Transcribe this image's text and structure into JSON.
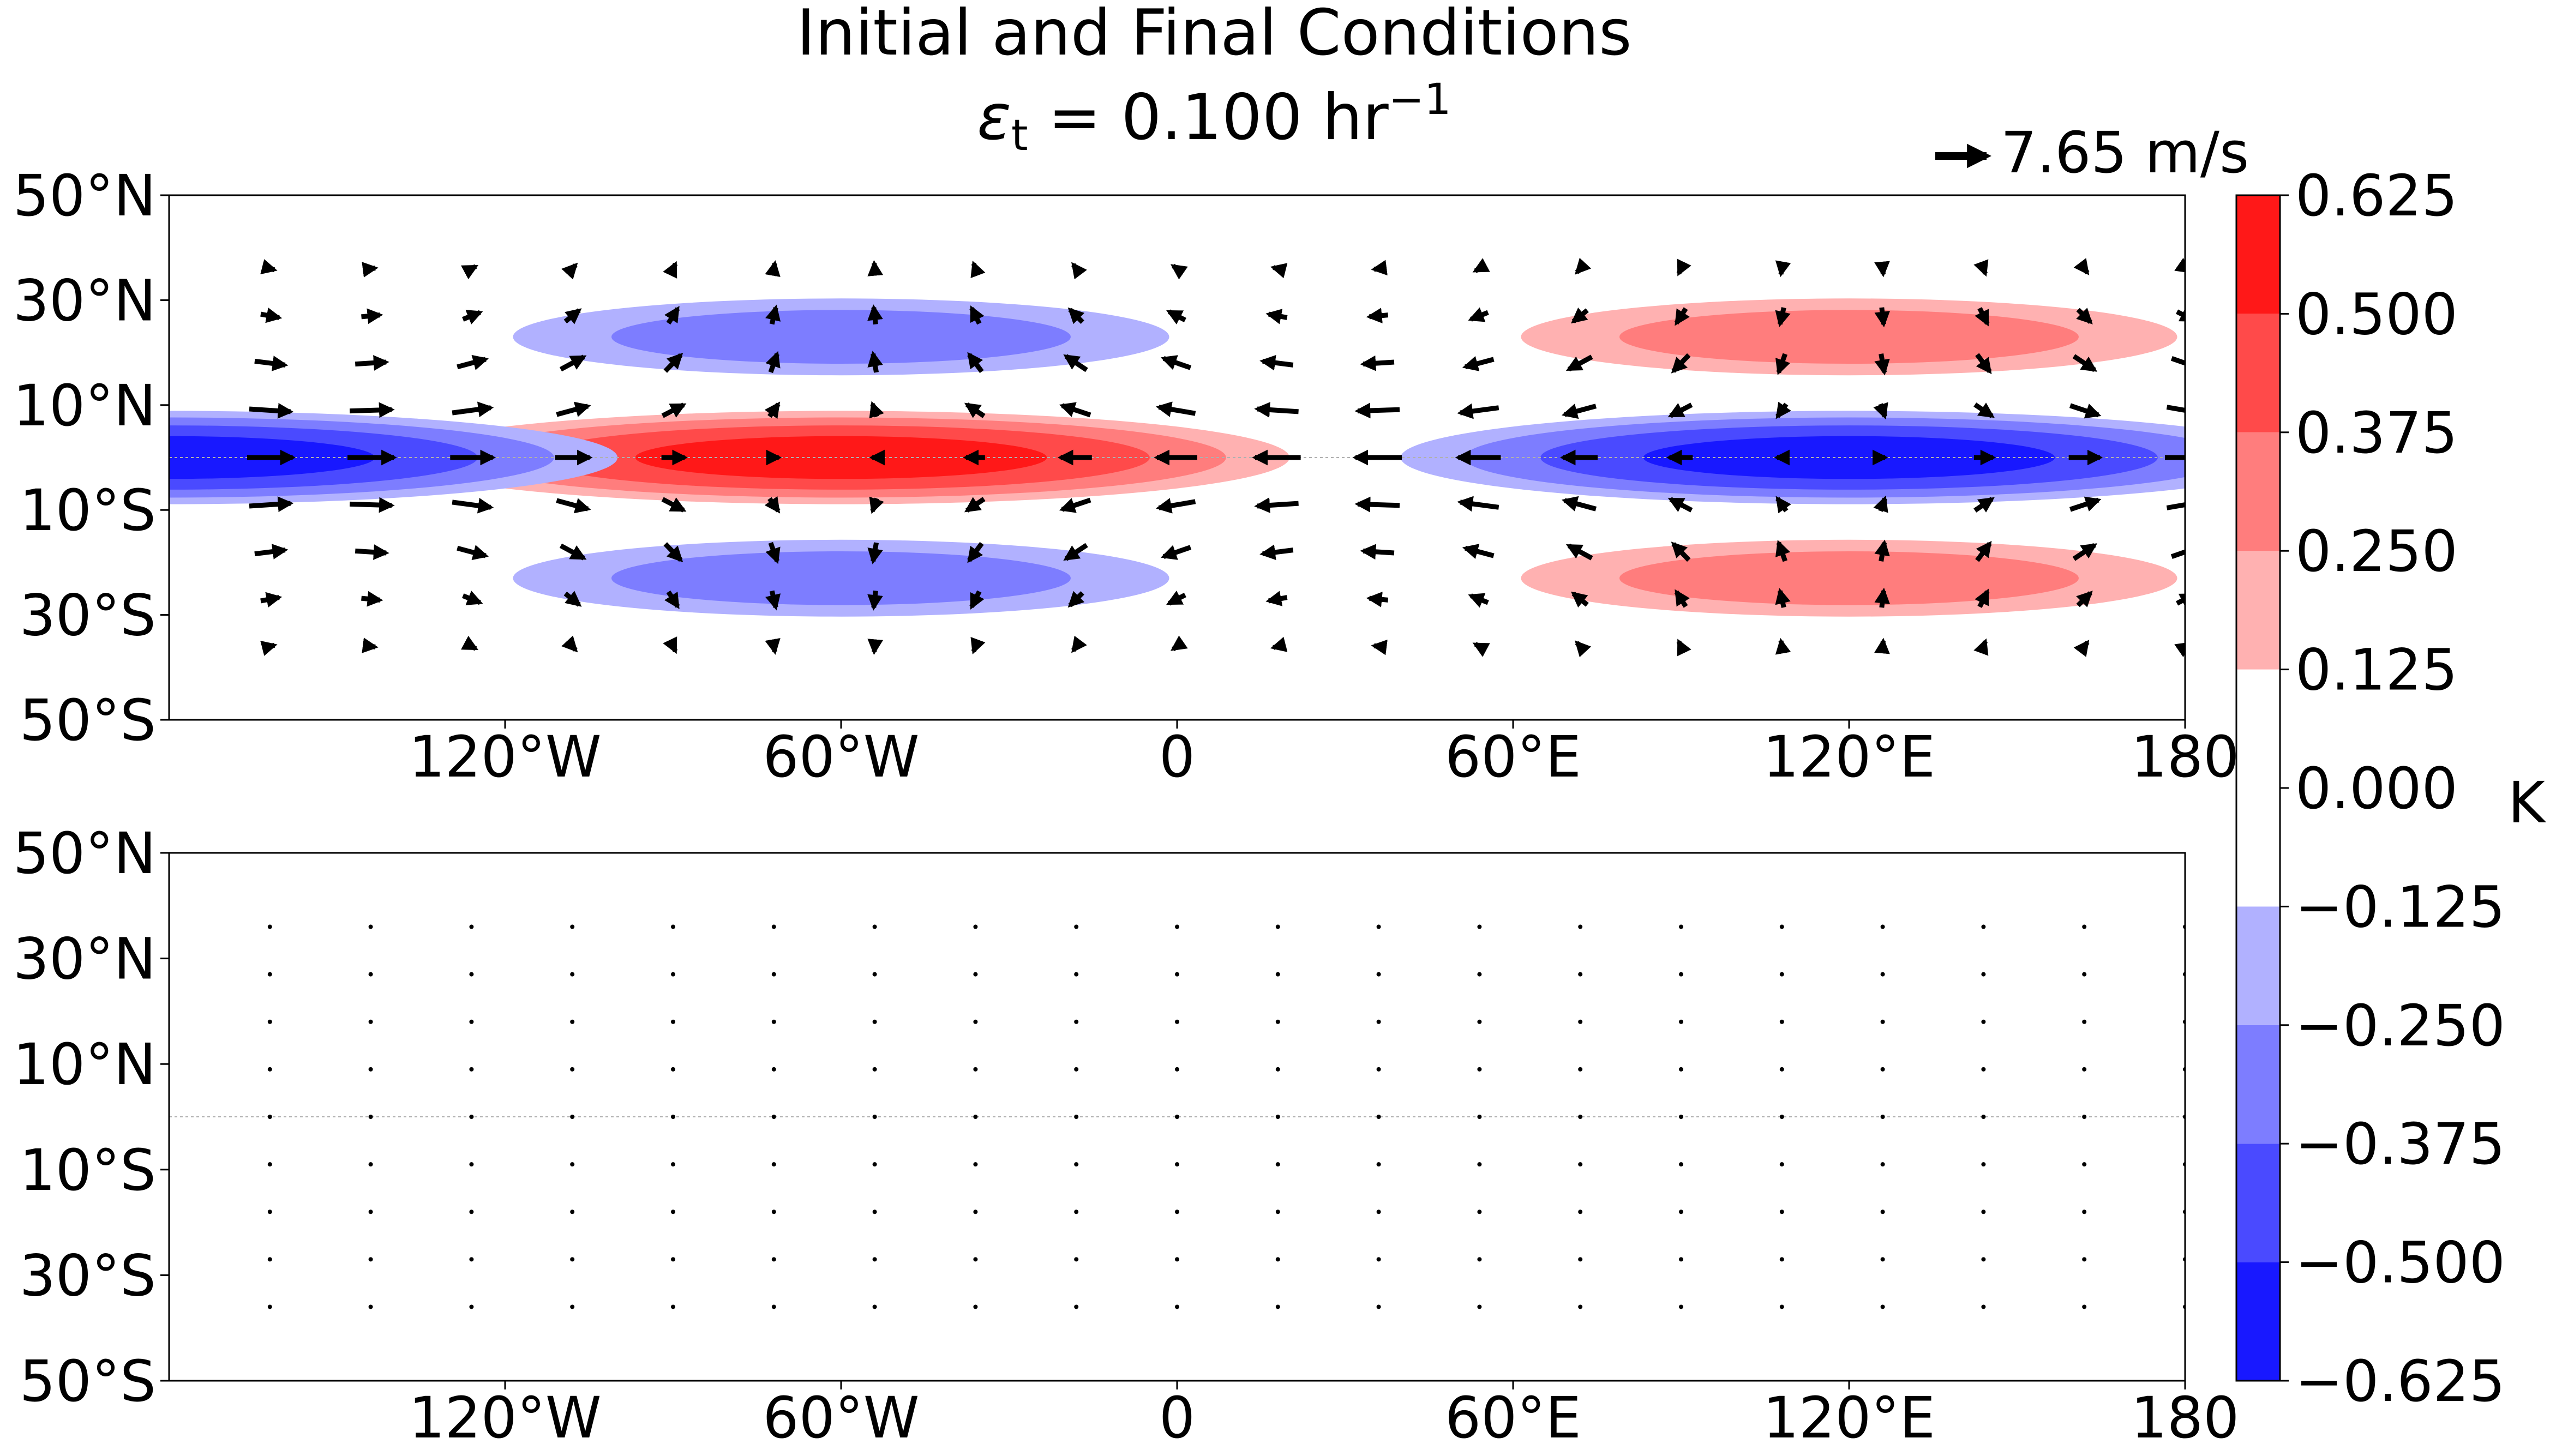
{
  "figure": {
    "title_line1": "Initial and Final Conditions",
    "title_symbol": "ε",
    "title_subscript": "t",
    "title_value": " = 0.100 hr",
    "title_exponent": "−1"
  },
  "quiver_key": {
    "value": 7.65,
    "label": "7.65 m/s"
  },
  "colorbar": {
    "label": "K",
    "levels": [
      -0.625,
      -0.5,
      -0.375,
      -0.25,
      -0.125,
      0.0,
      0.125,
      0.25,
      0.375,
      0.5,
      0.625
    ],
    "tick_labels": [
      "−0.625",
      "−0.500",
      "−0.375",
      "−0.250",
      "−0.125",
      "0.000",
      "0.125",
      "0.250",
      "0.375",
      "0.500",
      "0.625"
    ],
    "colors": [
      "#1818ff",
      "#4a4aff",
      "#7d7dff",
      "#b1b1ff",
      "#ffffff",
      "#ffffff",
      "#ffb1b1",
      "#ff7d7d",
      "#ff4a4a",
      "#ff1818"
    ]
  },
  "chart_data": [
    {
      "type": "contourf+quiver",
      "panel": "initial",
      "x_ticks": [
        -120,
        -60,
        0,
        60,
        120,
        180
      ],
      "x_tick_labels": [
        "120°W",
        "60°W",
        "0",
        "60°E",
        "120°E",
        "180"
      ],
      "y_ticks": [
        50,
        30,
        10,
        -10,
        -30,
        -50
      ],
      "y_tick_labels": [
        "50°N",
        "30°N",
        "10°N",
        "10°S",
        "30°S",
        "50°S"
      ],
      "xlim": [
        -180,
        180
      ],
      "ylim": [
        -50,
        50
      ],
      "equator_line": true,
      "temperature_anomaly_K": {
        "equatorial": [
          {
            "lon_center": -60,
            "lat_center": 0,
            "peak": 0.6
          },
          {
            "lon_center": 120,
            "lat_center": 0,
            "peak": -0.6
          },
          {
            "lon_center": -180,
            "lat_center": 0,
            "peak": -0.6
          }
        ],
        "off_equatorial": [
          {
            "lon_center": -60,
            "lat_center": 23,
            "peak": -0.37
          },
          {
            "lon_center": -60,
            "lat_center": -23,
            "peak": -0.37
          },
          {
            "lon_center": 120,
            "lat_center": 23,
            "peak": 0.37
          },
          {
            "lon_center": 120,
            "lat_center": -23,
            "peak": 0.37
          }
        ]
      },
      "wind_field": {
        "lon_spacing_deg": 18,
        "lat_spacing_deg": 9,
        "max_speed_ms": 7.65
      }
    },
    {
      "type": "contourf+quiver",
      "panel": "final",
      "x_ticks": [
        -120,
        -60,
        0,
        60,
        120,
        180
      ],
      "x_tick_labels": [
        "120°W",
        "60°W",
        "0",
        "60°E",
        "120°E",
        "180"
      ],
      "y_ticks": [
        50,
        30,
        10,
        -10,
        -30,
        -50
      ],
      "y_tick_labels": [
        "50°N",
        "30°N",
        "10°N",
        "10°S",
        "30°S",
        "50°S"
      ],
      "xlim": [
        -180,
        180
      ],
      "ylim": [
        -50,
        50
      ],
      "equator_line": true,
      "temperature_anomaly_K": "all values within ±0.125",
      "wind_field": {
        "lon_spacing_deg": 18,
        "lat_spacing_deg": 9,
        "max_speed_ms": 0
      }
    }
  ]
}
